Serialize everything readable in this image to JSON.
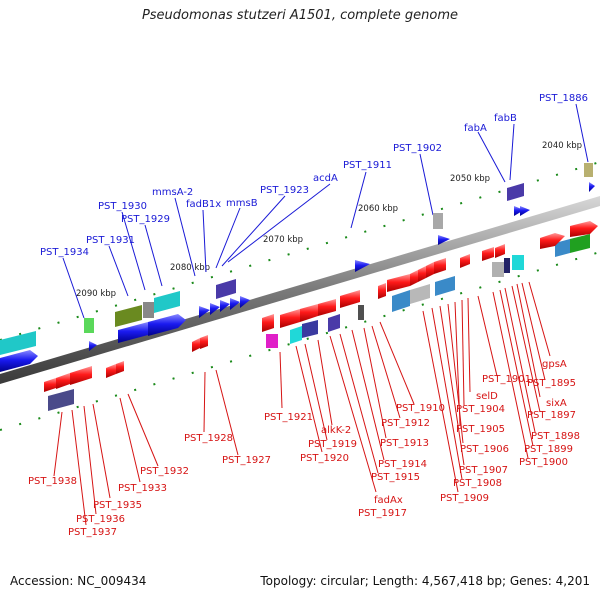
{
  "title": "Pseudomonas stutzeri A1501, complete genome",
  "footer": {
    "accession": "Accession: NC_009434",
    "summary": "Topology: circular; Length: 4,567,418 bp; Genes: 4,201"
  },
  "kbp_ticks": [
    "2040 kbp",
    "2050 kbp",
    "2060 kbp",
    "2070 kbp",
    "2080 kbp",
    "2090 kbp"
  ],
  "labels_blue": [
    "PST_1886",
    "fabB",
    "fabA",
    "PST_1902",
    "PST_1911",
    "acdA",
    "PST_1923",
    "mmsB",
    "fadB1x",
    "mmsA-2",
    "PST_1930",
    "PST_1929",
    "PST_1931",
    "PST_1934"
  ],
  "labels_red": [
    "gpsA",
    "PST_1895",
    "sixA",
    "PST_1897",
    "PST_1898",
    "PST_1899",
    "PST_1900",
    "PST_1901",
    "selD",
    "PST_1904",
    "PST_1905",
    "PST_1906",
    "PST_1907",
    "PST_1908",
    "PST_1909",
    "PST_1910",
    "PST_1912",
    "PST_1913",
    "PST_1914",
    "PST_1915",
    "fadAx",
    "PST_1917",
    "alkK-2",
    "PST_1919",
    "PST_1920",
    "PST_1921",
    "PST_1927",
    "PST_1928",
    "PST_1932",
    "PST_1933",
    "PST_1935",
    "PST_1936",
    "PST_1937",
    "PST_1938"
  ]
}
